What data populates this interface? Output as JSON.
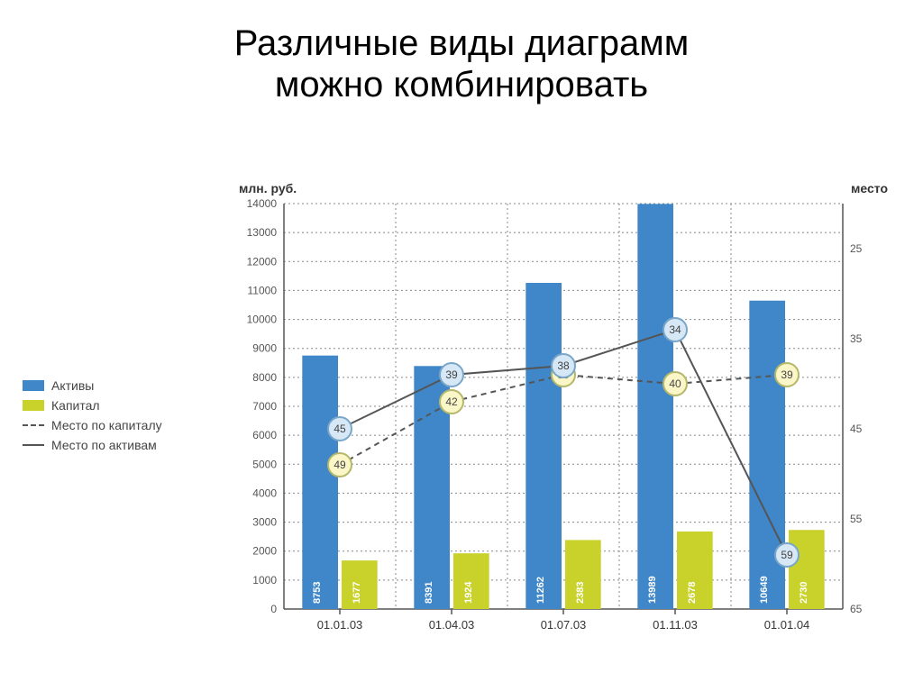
{
  "title_line1": "Различные виды диаграмм",
  "title_line2": "можно комбинировать",
  "legend": {
    "items": [
      {
        "kind": "bar",
        "label": "Активы",
        "color": "#3f87c9"
      },
      {
        "kind": "bar",
        "label": "Капитал",
        "color": "#c9d12b"
      },
      {
        "kind": "dash",
        "label": "Место по капиталу",
        "color": "#555555"
      },
      {
        "kind": "line",
        "label": "Место по активам",
        "color": "#555555"
      }
    ]
  },
  "chart": {
    "type": "combo-bar-line-dual-axis",
    "background_color": "#ffffff",
    "grid_color": "#888888",
    "axis_color": "#555555",
    "left_axis": {
      "title": "млн. руб.",
      "min": 0,
      "max": 14000,
      "step": 1000,
      "fontsize": 12
    },
    "right_axis": {
      "title": "место",
      "min": 65,
      "max": 20,
      "ticks": [
        25,
        35,
        45,
        55,
        65
      ],
      "fontsize": 12
    },
    "categories": [
      "01.01.03",
      "01.04.03",
      "01.07.03",
      "01.11.03",
      "01.01.04"
    ],
    "series": {
      "assets": {
        "color": "#3f87c9",
        "values": [
          8753,
          8391,
          11262,
          13989,
          10649
        ],
        "bar_width": 0.32
      },
      "capital": {
        "color": "#c9d12b",
        "values": [
          1677,
          1924,
          2383,
          2678,
          2730
        ],
        "bar_width": 0.32
      },
      "place_capital": {
        "style": "dash",
        "color": "#555555",
        "marker_fill": "#faf6c7",
        "marker_stroke": "#b5b86b",
        "marker_r": 13,
        "values": [
          49,
          42,
          39,
          40,
          39
        ]
      },
      "place_assets": {
        "style": "solid",
        "color": "#555555",
        "marker_fill": "#d6e7f5",
        "marker_stroke": "#7aa7c9",
        "marker_r": 13,
        "values": [
          45,
          39,
          38,
          34,
          59
        ]
      }
    },
    "label_rotation_deg": -90
  }
}
